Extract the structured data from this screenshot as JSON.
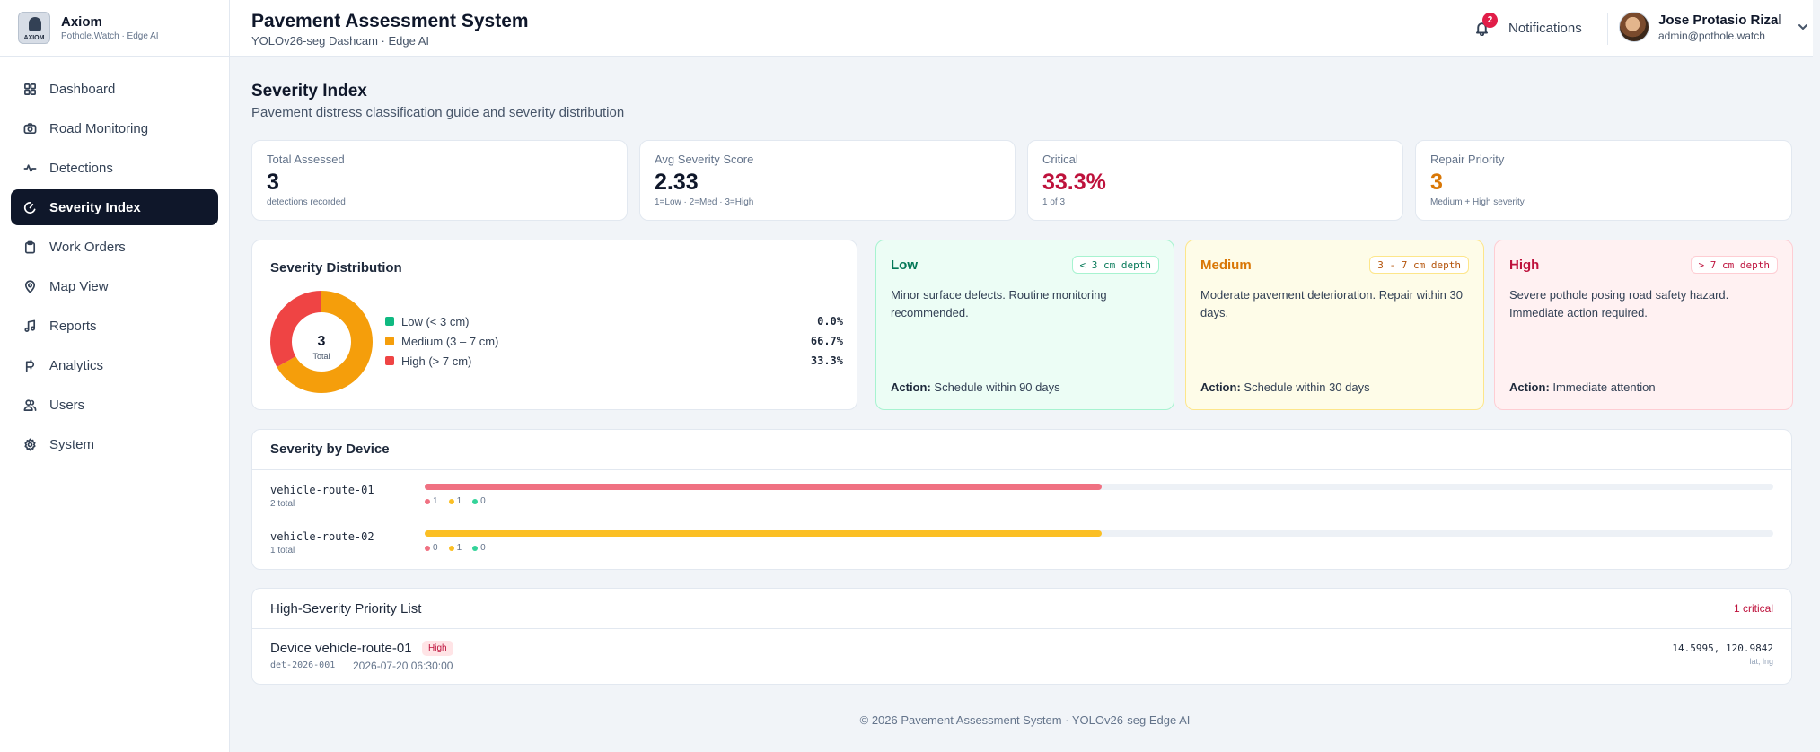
{
  "brand": {
    "logo_text": "AXIOM",
    "name": "Axiom",
    "subtitle": "Pothole.Watch · Edge AI"
  },
  "sidebar": {
    "items": [
      {
        "label": "Dashboard",
        "icon": "grid-icon",
        "active": false
      },
      {
        "label": "Road Monitoring",
        "icon": "camera-icon",
        "active": false
      },
      {
        "label": "Detections",
        "icon": "pulse-icon",
        "active": false
      },
      {
        "label": "Severity Index",
        "icon": "gauge-icon",
        "active": true
      },
      {
        "label": "Work Orders",
        "icon": "clipboard-icon",
        "active": false
      },
      {
        "label": "Map View",
        "icon": "map-pin-icon",
        "active": false
      },
      {
        "label": "Reports",
        "icon": "music-note-icon",
        "active": false
      },
      {
        "label": "Analytics",
        "icon": "plug-icon",
        "active": false
      },
      {
        "label": "Users",
        "icon": "users-icon",
        "active": false
      },
      {
        "label": "System",
        "icon": "gear-icon",
        "active": false
      }
    ]
  },
  "header": {
    "title": "Pavement Assessment System",
    "subtitle": "YOLOv26-seg Dashcam · Edge AI",
    "notifications_label": "Notifications",
    "notifications_count": "2",
    "user_name": "Jose Protasio Rizal",
    "user_email": "admin@pothole.watch"
  },
  "page": {
    "title": "Severity Index",
    "subtitle": "Pavement distress classification guide and severity distribution"
  },
  "stats": [
    {
      "label": "Total Assessed",
      "value": "3",
      "hint": "detections recorded",
      "color": "#0f172a"
    },
    {
      "label": "Avg Severity Score",
      "value": "2.33",
      "hint": "1=Low · 2=Med · 3=High",
      "color": "#0f172a"
    },
    {
      "label": "Critical",
      "value": "33.3%",
      "hint": "1 of 3",
      "color": "#be123c"
    },
    {
      "label": "Repair Priority",
      "value": "3",
      "hint": "Medium + High severity",
      "color": "#d97706"
    }
  ],
  "distribution": {
    "title": "Severity Distribution",
    "center_value": "3",
    "center_label": "Total",
    "legend": [
      {
        "label": "Low (< 3 cm)",
        "pct": "0.0%",
        "color": "#10b981"
      },
      {
        "label": "Medium (3 – 7 cm)",
        "pct": "66.7%",
        "color": "#f59e0b"
      },
      {
        "label": "High (> 7 cm)",
        "pct": "33.3%",
        "color": "#ef4444"
      }
    ],
    "fractions": [
      0.0,
      0.667,
      0.333
    ]
  },
  "severity_levels": [
    {
      "name": "Low",
      "depth": "< 3 cm depth",
      "description": "Minor surface defects. Routine monitoring recommended.",
      "action_label": "Action:",
      "action": "Schedule within 90 days",
      "text_color": "#047857",
      "bg": "#ecfdf5",
      "border": "#a7f3d0"
    },
    {
      "name": "Medium",
      "depth": "3 - 7 cm depth",
      "description": "Moderate pavement deterioration. Repair within 30 days.",
      "action_label": "Action:",
      "action": "Schedule within 30 days",
      "text_color": "#d97706",
      "bg": "#fefce8",
      "border": "#fde68a"
    },
    {
      "name": "High",
      "depth": "> 7 cm depth",
      "description": "Severe pothole posing road safety hazard. Immediate action required.",
      "action_label": "Action:",
      "action": "Immediate attention",
      "text_color": "#be123c",
      "bg": "#fff1f2",
      "border": "#fecdd3"
    }
  ],
  "by_device": {
    "title": "Severity by Device",
    "devices": [
      {
        "name": "vehicle-route-01",
        "total": "2 total",
        "high": "1",
        "medium": "1",
        "low": "0",
        "fill": 0.502,
        "color": "#f07182"
      },
      {
        "name": "vehicle-route-02",
        "total": "1 total",
        "high": "0",
        "medium": "1",
        "low": "0",
        "fill": 0.502,
        "color": "#fbbf24"
      }
    ]
  },
  "priority": {
    "title": "High-Severity Priority List",
    "critical_count": "1 critical",
    "items": [
      {
        "device": "Device vehicle-route-01",
        "badge": "High",
        "id": "det-2026-001",
        "timestamp": "2026-07-20 06:30:00",
        "coords": "14.5995, 120.9842",
        "coords_label": "lat, lng"
      }
    ]
  },
  "footer": "© 2026 Pavement Assessment System · YOLOv26-seg Edge AI"
}
